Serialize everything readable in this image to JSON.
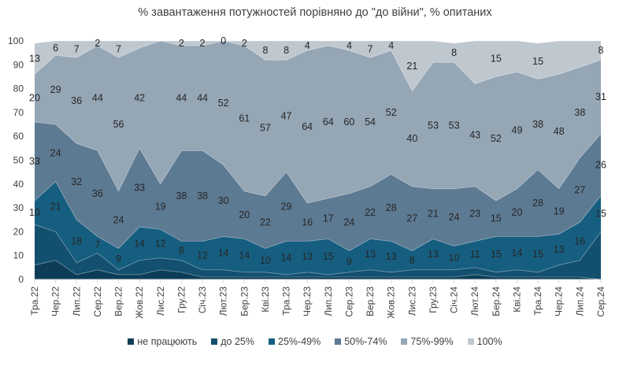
{
  "chart_data": {
    "type": "area",
    "stacked": true,
    "title": "% завантаження потужностей порівняно до \"до війни\", % опитаних",
    "xlabel": "",
    "ylabel": "",
    "ylim": [
      0,
      100
    ],
    "yticks": [
      0,
      10,
      20,
      30,
      40,
      50,
      60,
      70,
      80,
      90,
      100
    ],
    "grid": false,
    "legend_position": "bottom",
    "categories": [
      "Тра.22",
      "Чер.22",
      "Лип.22",
      "Сер.22",
      "Вер.22",
      "Жов.22",
      "Лис.22",
      "Гру.22",
      "Січ.23",
      "Лют.23",
      "Бер.23",
      "Кві.23",
      "Тра.23",
      "Чер.23",
      "Лип.23",
      "Сер.23",
      "Вер.23",
      "Жов.23",
      "Лис.23",
      "Гру.23",
      "Січ.24",
      "Лют.24",
      "Бер.24",
      "Кві.24",
      "Тра.24",
      "Чер.24",
      "Лип.24",
      "Сер.24"
    ],
    "series": [
      {
        "name": "не працюють",
        "color": "#0d3d56",
        "values": [
          6,
          8,
          2,
          4,
          2,
          2,
          4,
          3,
          1,
          1,
          1,
          1,
          1,
          1,
          1,
          1,
          1,
          1,
          1,
          1,
          1,
          2,
          1,
          1,
          1,
          1,
          1,
          0
        ],
        "labels": [
          null,
          null,
          null,
          null,
          null,
          null,
          null,
          null,
          null,
          null,
          null,
          null,
          null,
          null,
          null,
          null,
          null,
          null,
          null,
          null,
          null,
          null,
          null,
          null,
          null,
          null,
          null,
          null
        ]
      },
      {
        "name": "до 25%",
        "color": "#13506f",
        "values": [
          17,
          12,
          5,
          7,
          2,
          6,
          5,
          5,
          3,
          3,
          2,
          2,
          1,
          2,
          1,
          2,
          3,
          2,
          3,
          3,
          3,
          3,
          2,
          3,
          2,
          5,
          7,
          20
        ],
        "labels": [
          null,
          null,
          null,
          null,
          null,
          null,
          null,
          null,
          null,
          null,
          null,
          null,
          null,
          null,
          null,
          null,
          null,
          null,
          null,
          null,
          null,
          null,
          null,
          null,
          null,
          null,
          null,
          null
        ]
      },
      {
        "name": "25%-49%",
        "color": "#165e80",
        "values": [
          10,
          21,
          18,
          7,
          9,
          14,
          12,
          8,
          12,
          14,
          14,
          10,
          14,
          13,
          15,
          9,
          13,
          13,
          8,
          13,
          10,
          11,
          15,
          14,
          15,
          13,
          16,
          15
        ],
        "labels": [
          10,
          21,
          18,
          7,
          9,
          14,
          12,
          8,
          12,
          14,
          14,
          10,
          14,
          13,
          15,
          9,
          13,
          13,
          8,
          13,
          10,
          11,
          15,
          14,
          15,
          13,
          16,
          15
        ]
      },
      {
        "name": "50%-74%",
        "color": "#5d7a93",
        "values": [
          33,
          24,
          32,
          36,
          24,
          33,
          19,
          38,
          38,
          30,
          20,
          22,
          29,
          16,
          17,
          24,
          22,
          28,
          27,
          21,
          24,
          23,
          15,
          20,
          28,
          19,
          27,
          26
        ],
        "labels": [
          33,
          24,
          32,
          36,
          24,
          33,
          19,
          38,
          38,
          30,
          20,
          22,
          29,
          16,
          17,
          24,
          22,
          28,
          27,
          21,
          24,
          23,
          15,
          20,
          28,
          19,
          27,
          26
        ]
      },
      {
        "name": "75%-99%",
        "color": "#95a6b5",
        "values": [
          20,
          29,
          36,
          44,
          56,
          42,
          60,
          44,
          44,
          52,
          61,
          57,
          47,
          64,
          64,
          60,
          54,
          52,
          40,
          53,
          53,
          43,
          52,
          49,
          38,
          48,
          38,
          31
        ],
        "labels": [
          20,
          29,
          36,
          44,
          56,
          42,
          null,
          44,
          44,
          52,
          61,
          57,
          47,
          64,
          64,
          60,
          54,
          52,
          40,
          53,
          53,
          43,
          52,
          49,
          38,
          48,
          38,
          31
        ]
      },
      {
        "name": "100%",
        "color": "#bfc7cf",
        "values": [
          13,
          6,
          7,
          2,
          7,
          3,
          0,
          2,
          2,
          0,
          2,
          8,
          8,
          4,
          2,
          4,
          7,
          4,
          21,
          9,
          8,
          18,
          15,
          13,
          15,
          14,
          11,
          8
        ],
        "labels": [
          13,
          6,
          7,
          2,
          7,
          null,
          null,
          2,
          2,
          0,
          2,
          8,
          8,
          4,
          null,
          4,
          7,
          4,
          21,
          null,
          8,
          null,
          15,
          null,
          15,
          null,
          null,
          8
        ]
      }
    ]
  }
}
